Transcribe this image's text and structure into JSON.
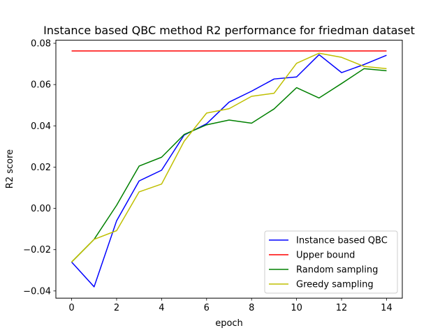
{
  "chart_data": {
    "type": "line",
    "title": "Instance based QBC method R2 performance for friedman dataset",
    "xlabel": "epoch",
    "ylabel": "R2 score",
    "xlim": [
      -0.7,
      14.7
    ],
    "ylim": [
      -0.0435,
      0.0815
    ],
    "xticks": [
      0,
      2,
      4,
      6,
      8,
      10,
      12,
      14
    ],
    "yticks": [
      -0.04,
      -0.02,
      0.0,
      0.02,
      0.04,
      0.06,
      0.08
    ],
    "ytick_labels": [
      "−0.04",
      "−0.02",
      "0.00",
      "0.02",
      "0.04",
      "0.06",
      "0.08"
    ],
    "grid": false,
    "legend_position": "lower-right",
    "x": [
      0,
      1,
      2,
      3,
      4,
      5,
      6,
      7,
      8,
      9,
      10,
      11,
      12,
      13,
      14
    ],
    "series": [
      {
        "name": "Instance based QBC",
        "color": "#0000ff",
        "values": [
          -0.026,
          -0.038,
          -0.006,
          0.0133,
          0.0185,
          0.0355,
          0.041,
          0.0515,
          0.0568,
          0.0627,
          0.0637,
          0.0745,
          0.0658,
          0.0697,
          0.0742
        ]
      },
      {
        "name": "Upper bound",
        "color": "#ff0000",
        "values": [
          0.0763,
          0.0763,
          0.0763,
          0.0763,
          0.0763,
          0.0763,
          0.0763,
          0.0763,
          0.0763,
          0.0763,
          0.0763,
          0.0763,
          0.0763,
          0.0763,
          0.0763
        ]
      },
      {
        "name": "Random sampling",
        "color": "#008000",
        "values": [
          -0.026,
          -0.015,
          0.0015,
          0.0205,
          0.0248,
          0.0358,
          0.0405,
          0.0428,
          0.0413,
          0.0482,
          0.0585,
          0.0535,
          0.0605,
          0.0677,
          0.0667
        ]
      },
      {
        "name": "Greedy sampling",
        "color": "#bfbf00",
        "values": [
          -0.026,
          -0.015,
          -0.0108,
          0.008,
          0.0118,
          0.0325,
          0.0462,
          0.0483,
          0.0543,
          0.0558,
          0.0703,
          0.0752,
          0.0732,
          0.0688,
          0.0677
        ]
      }
    ]
  }
}
